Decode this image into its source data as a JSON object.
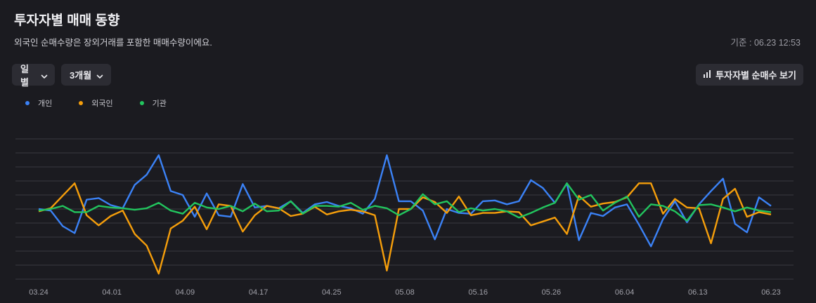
{
  "header": {
    "title": "투자자별 매매 동향",
    "subtitle": "외국인 순매수량은 장외거래를 포함한 매매수량이에요.",
    "timestamp": "기준 : 06.23 12:53"
  },
  "controls": {
    "period_label": "일별",
    "range_label": "3개월",
    "net_button_label": "투자자별 순매수 보기",
    "chevron_icon": "chevron-down-icon",
    "net_button_icon": "bar-chart-icon"
  },
  "colors": {
    "individual": "#3b82f6",
    "foreign": "#f59e0b",
    "institution": "#22c55e",
    "grid": "#3a3a40",
    "background": "#1b1b20"
  },
  "chart_data": {
    "type": "line",
    "grid": true,
    "legend_position": "top-left",
    "ylim": [
      -9,
      9
    ],
    "x_tick_labels": [
      "03.24",
      "04.01",
      "04.09",
      "04.17",
      "04.25",
      "05.08",
      "05.16",
      "05.26",
      "06.04",
      "06.13",
      "06.23"
    ],
    "series": [
      {
        "name": "개인",
        "color": "#3b82f6",
        "values": [
          0,
          -0.2,
          -2.2,
          -3.1,
          1.2,
          1.4,
          0.5,
          0.1,
          3.1,
          4.4,
          6.9,
          2.3,
          1.8,
          -1,
          2,
          -0.8,
          -1,
          3.2,
          0.2,
          0.4,
          0.1,
          1,
          -0.5,
          0.6,
          0.9,
          0.4,
          0.1,
          -0.6,
          1.3,
          6.9,
          1,
          1,
          -0.2,
          -3.9,
          0,
          -0.5,
          -0.6,
          1,
          1.1,
          0.6,
          1,
          3.7,
          2.7,
          0.8,
          3.3,
          -4,
          -0.5,
          -0.9,
          0.2,
          0.6,
          -2,
          -4.8,
          -1.3,
          1,
          -1.7,
          0.6,
          2.3,
          3.9,
          -1.9,
          -3,
          1.5,
          0.4
        ]
      },
      {
        "name": "외국인",
        "color": "#f59e0b",
        "values": [
          -0.3,
          0.1,
          1.7,
          3.3,
          -0.8,
          -2.1,
          -0.9,
          -0.2,
          -3.2,
          -4.7,
          -8.3,
          -2.5,
          -1.5,
          0.3,
          -2.6,
          0.6,
          0.4,
          -2.9,
          -0.8,
          0.4,
          0.1,
          -0.9,
          -0.6,
          0.3,
          -0.7,
          -0.3,
          -0.1,
          -0.3,
          -0.8,
          -7.9,
          0,
          0,
          1.5,
          0.9,
          -0.5,
          1.6,
          -0.8,
          -0.5,
          -0.5,
          -0.3,
          -0.4,
          -2.1,
          -1.6,
          -1.1,
          -3.2,
          1.7,
          0.3,
          0.7,
          0.9,
          1.5,
          3.3,
          3.3,
          -0.6,
          1.3,
          0.2,
          0.1,
          -4.4,
          1.3,
          2.6,
          -1,
          -0.4,
          -0.7
        ]
      },
      {
        "name": "기관",
        "color": "#22c55e",
        "values": [
          -0.2,
          0,
          0.4,
          -0.4,
          -0.4,
          0.4,
          0.2,
          0.1,
          -0.1,
          0.1,
          0.8,
          -0.2,
          -0.6,
          0.8,
          0.2,
          0,
          0.4,
          -0.3,
          0.7,
          -0.3,
          -0.2,
          1,
          -0.6,
          0.4,
          0.4,
          0.3,
          0.8,
          -0.1,
          0.4,
          0.1,
          -0.8,
          0,
          1.9,
          0.6,
          1,
          -0.4,
          0.1,
          -0.2,
          0,
          -0.3,
          -1.1,
          -0.5,
          0.2,
          0.8,
          3.3,
          1.2,
          1.8,
          -0.2,
          0.8,
          1.6,
          -1,
          0.6,
          0.4,
          -0.3,
          -1.5,
          0.5,
          0.6,
          0.2,
          -0.3,
          0.2,
          -0.2,
          -0.4
        ]
      }
    ]
  }
}
